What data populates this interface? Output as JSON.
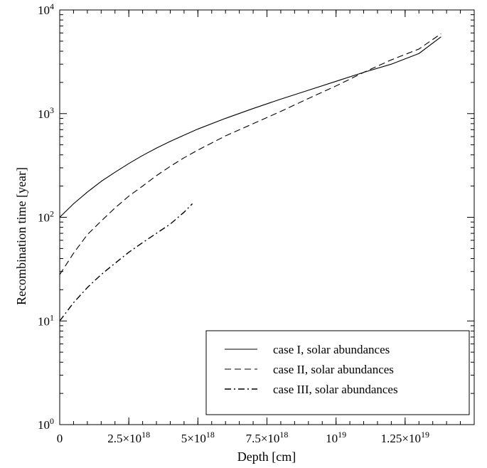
{
  "chart_data": {
    "type": "line",
    "title": "",
    "xlabel": "Depth [cm]",
    "ylabel": "Recombination time [year]",
    "xlim": [
      0,
      1.5e+19
    ],
    "ylim": [
      1,
      10000
    ],
    "yscale": "log",
    "grid": false,
    "legend_position": "bottom-right",
    "x_ticks": [
      {
        "value": 0,
        "label": "0"
      },
      {
        "value": 2.5e+18,
        "label": "2.5×10",
        "exp": "18"
      },
      {
        "value": 5e+18,
        "label": "5×10",
        "exp": "18"
      },
      {
        "value": 7.5e+18,
        "label": "7.5×10",
        "exp": "18"
      },
      {
        "value": 1e+19,
        "label": "10",
        "exp": "19"
      },
      {
        "value": 1.25e+19,
        "label": "1.25×10",
        "exp": "19"
      }
    ],
    "y_ticks": [
      {
        "value": 1,
        "label": "10",
        "exp": "0"
      },
      {
        "value": 10,
        "label": "10",
        "exp": "1"
      },
      {
        "value": 100,
        "label": "10",
        "exp": "2"
      },
      {
        "value": 1000,
        "label": "10",
        "exp": "3"
      },
      {
        "value": 10000,
        "label": "10",
        "exp": "4"
      }
    ],
    "series": [
      {
        "name": "case I, solar abundances",
        "dash": "solid",
        "x": [
          0,
          5e+17,
          1e+18,
          1.5e+18,
          2e+18,
          2.5e+18,
          3e+18,
          3.5e+18,
          4e+18,
          4.5e+18,
          5e+18,
          6e+18,
          7e+18,
          8e+18,
          9e+18,
          1e+19,
          1.1e+19,
          1.2e+19,
          1.3e+19,
          1.38e+19
        ],
        "y": [
          100,
          135,
          175,
          222,
          272,
          330,
          395,
          465,
          540,
          620,
          710,
          900,
          1120,
          1380,
          1680,
          2050,
          2500,
          3000,
          3800,
          5500
        ]
      },
      {
        "name": "case II, solar abundances",
        "dash": "dashed",
        "x": [
          0,
          5e+17,
          1e+18,
          1.5e+18,
          2e+18,
          2.5e+18,
          3e+18,
          3.5e+18,
          4e+18,
          4.5e+18,
          5e+18,
          6e+18,
          7e+18,
          8e+18,
          9e+18,
          1e+19,
          1.1e+19,
          1.2e+19,
          1.3e+19,
          1.38e+19
        ],
        "y": [
          28,
          45,
          68,
          92,
          123,
          160,
          200,
          252,
          310,
          375,
          445,
          610,
          800,
          1050,
          1400,
          1850,
          2500,
          3300,
          4200,
          5900
        ]
      },
      {
        "name": "case III, solar abundances",
        "dash": "dash-dot",
        "x": [
          0,
          5e+17,
          1e+18,
          1.5e+18,
          2e+18,
          2.5e+18,
          3e+18,
          3.5e+18,
          4e+18,
          4.5e+18,
          4.8e+18
        ],
        "y": [
          10,
          15,
          21,
          28,
          36,
          46,
          57,
          70,
          86,
          112,
          135
        ]
      }
    ]
  }
}
